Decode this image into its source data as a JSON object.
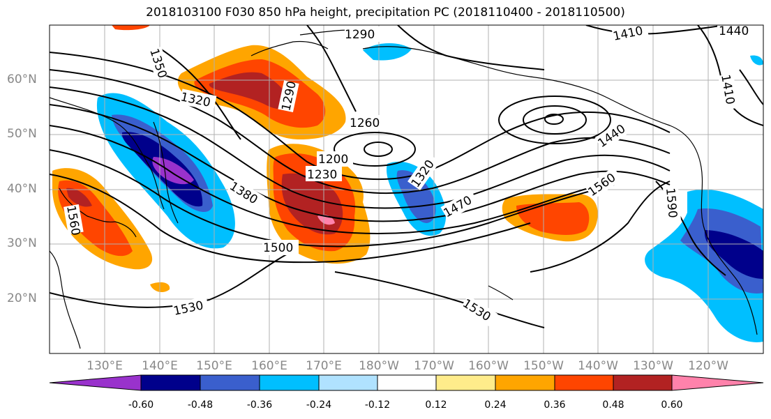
{
  "title": "2018103100 F030 850 hPa height, precipitation PC (2018110400 - 2018110500)",
  "map": {
    "lat_labels": [
      "60°N",
      "50°N",
      "40°N",
      "30°N",
      "20°N"
    ],
    "lon_labels": [
      "130°E",
      "140°E",
      "150°E",
      "160°E",
      "170°E",
      "180°W",
      "170°W",
      "160°W",
      "150°W",
      "140°W",
      "130°W",
      "120°W"
    ],
    "contour_labels": [
      "1290",
      "1350",
      "1320",
      "1290",
      "1260",
      "1200",
      "1230",
      "1380",
      "1320",
      "1470",
      "1500",
      "1560",
      "1440",
      "1410",
      "1440",
      "1410",
      "1590",
      "1530",
      "1530",
      "1560"
    ]
  },
  "colorbar": {
    "colors": [
      "#9932cc",
      "#00008b",
      "#3a5fcd",
      "#00bfff",
      "#b0e2ff",
      "#ffffff",
      "#ffec8b",
      "#ffa500",
      "#ff4500",
      "#b22222",
      "#ff82ab"
    ],
    "tick_labels": [
      "-0.60",
      "-0.48",
      "-0.36",
      "-0.24",
      "-0.12",
      "0.12",
      "0.24",
      "0.36",
      "0.48",
      "0.60"
    ]
  }
}
